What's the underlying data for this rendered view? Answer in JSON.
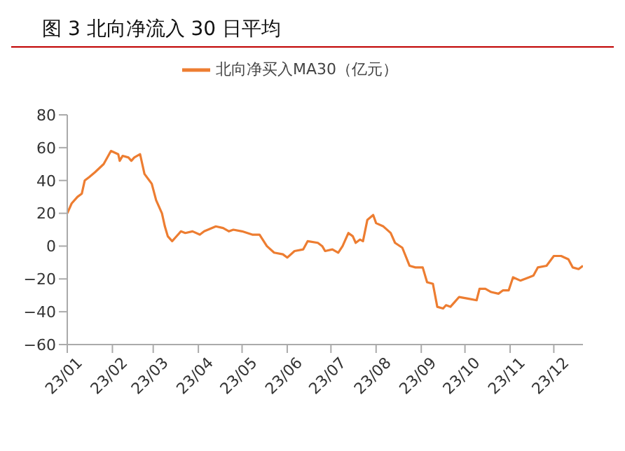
{
  "chart_data": {
    "type": "line",
    "title": "图 3 北向净流入 30 日平均",
    "x": [
      "--01-01",
      "--01-04",
      "--01-08",
      "--01-11",
      "--01-13",
      "--01-16",
      "--01-20",
      "--01-26",
      "--01-31",
      "--02-05",
      "--02-06",
      "--02-08",
      "--02-12",
      "--02-14",
      "--02-16",
      "--02-20",
      "--02-23",
      "--02-28",
      "--03-03",
      "--03-07",
      "--03-09",
      "--03-11",
      "--03-14",
      "--03-16",
      "--03-20",
      "--03-23",
      "--03-28",
      "--04-02",
      "--04-05",
      "--04-13",
      "--04-18",
      "--04-22",
      "--04-25",
      "--05-01",
      "--05-08",
      "--05-13",
      "--05-18",
      "--05-23",
      "--05-29",
      "--06-01",
      "--06-06",
      "--06-12",
      "--06-15",
      "--06-22",
      "--06-25",
      "--06-27",
      "--07-02",
      "--07-06",
      "--07-09",
      "--07-13",
      "--07-16",
      "--07-18",
      "--07-21",
      "--07-23",
      "--07-26",
      "--07-30",
      "--08-01",
      "--08-06",
      "--08-11",
      "--08-14",
      "--08-19",
      "--08-24",
      "--08-28",
      "--09-02",
      "--09-05",
      "--09-09",
      "--09-12",
      "--09-16",
      "--09-18",
      "--09-21",
      "--09-24",
      "--09-27",
      "--10-03",
      "--10-09",
      "--10-11",
      "--10-15",
      "--10-19",
      "--10-24",
      "--10-27",
      "--10-31",
      "--11-03",
      "--11-08",
      "--11-14",
      "--11-17",
      "--11-20",
      "--11-26",
      "--12-01",
      "--12-06",
      "--12-11",
      "--12-14",
      "--12-18",
      "--12-21"
    ],
    "series": [
      {
        "name": "北向净买入MA30（亿元）",
        "color": "#ed7d31",
        "values": [
          20,
          26,
          30,
          32,
          40,
          42,
          45,
          50,
          58,
          56,
          52,
          55,
          54,
          52,
          54,
          56,
          44,
          38,
          28,
          20,
          12,
          6,
          3,
          5,
          9,
          8,
          9,
          7,
          9,
          12,
          11,
          9,
          10,
          9,
          7,
          7,
          0,
          -4,
          -5,
          -7,
          -3,
          -2,
          3,
          2,
          0,
          -3,
          -2,
          -4,
          0,
          8,
          6,
          2,
          4,
          3,
          16,
          19,
          14,
          12,
          8,
          2,
          -1,
          -12,
          -13,
          -13,
          -22,
          -23,
          -37,
          -38,
          -36,
          -37,
          -34,
          -31,
          -32,
          -33,
          -26,
          -26,
          -28,
          -29,
          -27,
          -27,
          -19,
          -21,
          -19,
          -18,
          -13,
          -12,
          -6,
          -6,
          -8,
          -13,
          -14,
          -12
        ]
      }
    ],
    "xlim": [
      "--01-01",
      "--12-21"
    ],
    "xticks": [
      {
        "value": "--01-01",
        "label": "23/01"
      },
      {
        "value": "--02-01",
        "label": "23/02"
      },
      {
        "value": "--03-01",
        "label": "23/03"
      },
      {
        "value": "--04-01",
        "label": "23/04"
      },
      {
        "value": "--05-01",
        "label": "23/05"
      },
      {
        "value": "--06-01",
        "label": "23/06"
      },
      {
        "value": "--07-01",
        "label": "23/07"
      },
      {
        "value": "--08-01",
        "label": "23/08"
      },
      {
        "value": "--09-01",
        "label": "23/09"
      },
      {
        "value": "--10-01",
        "label": "23/10"
      },
      {
        "value": "--11-01",
        "label": "23/11"
      },
      {
        "value": "--12-01",
        "label": "23/12"
      }
    ],
    "ylim": [
      -60,
      80
    ],
    "yticks": [
      -60,
      -40,
      -20,
      0,
      20,
      40,
      60,
      80
    ],
    "grid": false,
    "legend": "top",
    "marker": "none",
    "line_style": "solid"
  }
}
